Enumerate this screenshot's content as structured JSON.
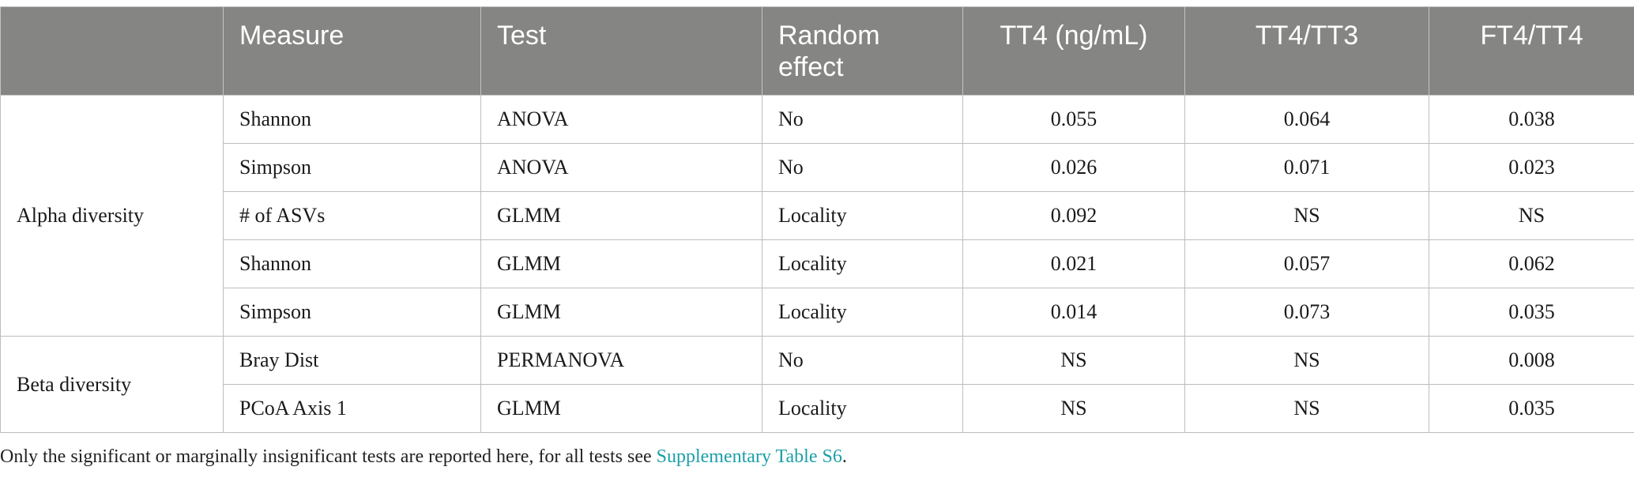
{
  "table": {
    "headers": [
      "",
      "Measure",
      "Test",
      "Random effect",
      "TT4 (ng/mL)",
      "TT4/TT3",
      "FT4/TT4"
    ],
    "groups": [
      {
        "label": "Alpha diversity",
        "rows": [
          [
            "Shannon",
            "ANOVA",
            "No",
            "0.055",
            "0.064",
            "0.038"
          ],
          [
            "Simpson",
            "ANOVA",
            "No",
            "0.026",
            "0.071",
            "0.023"
          ],
          [
            "# of ASVs",
            "GLMM",
            "Locality",
            "0.092",
            "NS",
            "NS"
          ],
          [
            "Shannon",
            "GLMM",
            "Locality",
            "0.021",
            "0.057",
            "0.062"
          ],
          [
            "Simpson",
            "GLMM",
            "Locality",
            "0.014",
            "0.073",
            "0.035"
          ]
        ]
      },
      {
        "label": "Beta diversity",
        "rows": [
          [
            "Bray Dist",
            "PERMANOVA",
            "No",
            "NS",
            "NS",
            "0.008"
          ],
          [
            "PCoA Axis 1",
            "GLMM",
            "Locality",
            "NS",
            "NS",
            "0.035"
          ]
        ]
      }
    ]
  },
  "footnote": {
    "text": "Only the significant or marginally insignificant tests are reported here, for all tests see ",
    "link": "Supplementary Table S6",
    "end": "."
  },
  "colors": {
    "header_bg": "#858584",
    "link": "#1b9fa8"
  }
}
